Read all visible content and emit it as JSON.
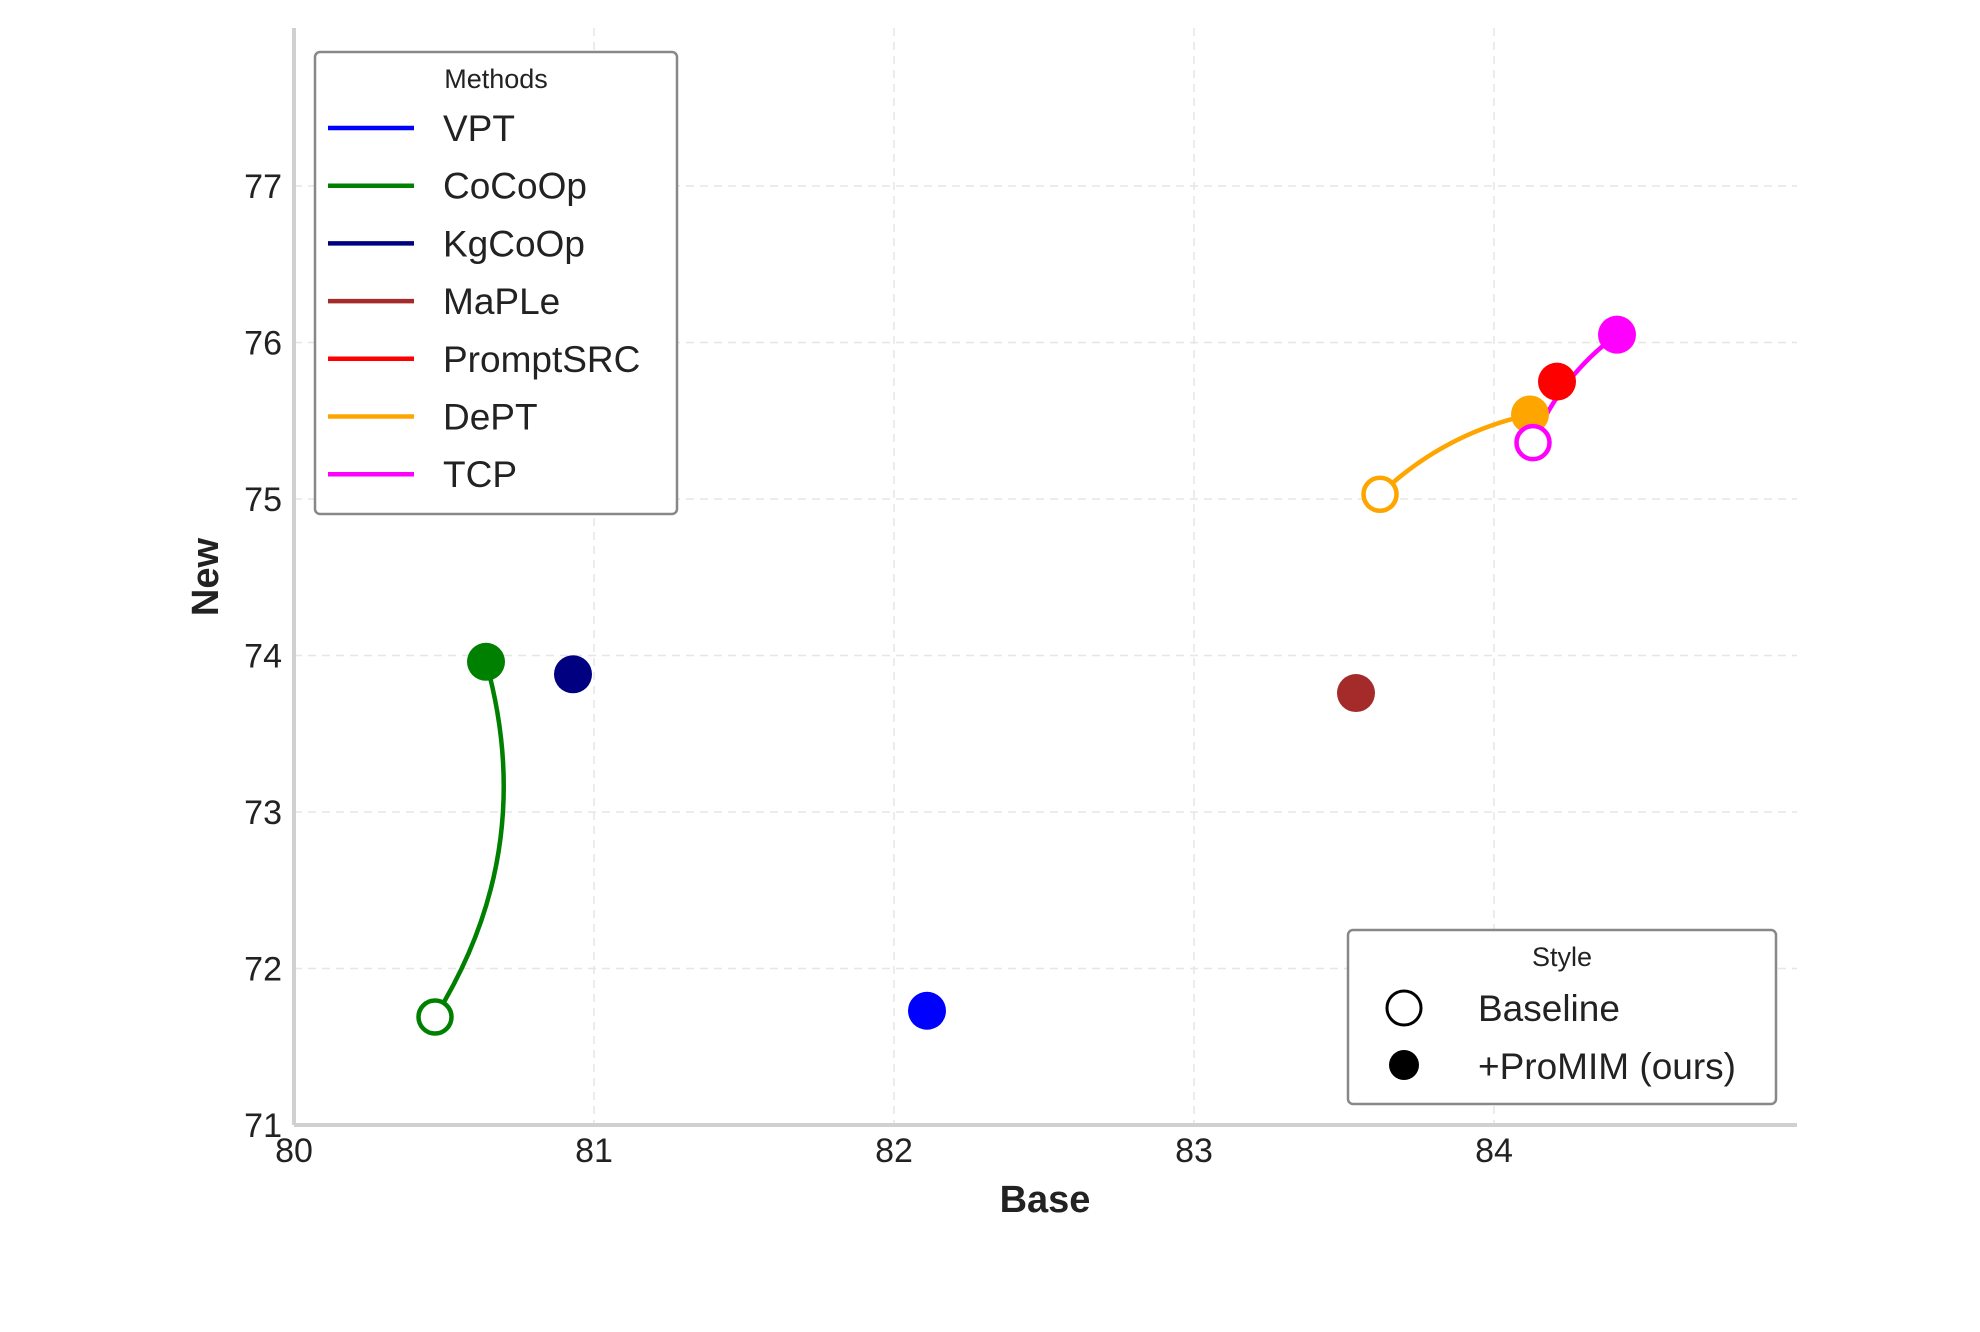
{
  "chart_data": {
    "type": "scatter",
    "title": "",
    "xlabel": "Base",
    "ylabel": "New",
    "xlim": [
      80,
      85
    ],
    "ylim": [
      71,
      78
    ],
    "xticks": [
      80,
      81,
      82,
      83,
      84
    ],
    "yticks": [
      71,
      72,
      73,
      74,
      75,
      76,
      77
    ],
    "grid": true,
    "series": [
      {
        "name": "VPT",
        "color": "#0000ff",
        "promim": {
          "x": 82.11,
          "y": 71.73
        }
      },
      {
        "name": "CoCoOp",
        "color": "#008000",
        "baseline": {
          "x": 80.47,
          "y": 71.69
        },
        "promim": {
          "x": 80.64,
          "y": 73.96
        }
      },
      {
        "name": "KgCoOp",
        "color": "#000080",
        "promim": {
          "x": 80.93,
          "y": 73.88
        }
      },
      {
        "name": "MaPLe",
        "color": "#a52a2a",
        "promim": {
          "x": 83.54,
          "y": 73.76
        }
      },
      {
        "name": "PromptSRC",
        "color": "#ff0000",
        "promim": {
          "x": 84.21,
          "y": 75.75
        }
      },
      {
        "name": "DePT",
        "color": "#ffa500",
        "baseline": {
          "x": 83.62,
          "y": 75.03
        },
        "promim": {
          "x": 84.12,
          "y": 75.54
        }
      },
      {
        "name": "TCP",
        "color": "#ff00ff",
        "baseline": {
          "x": 84.13,
          "y": 75.36
        },
        "promim": {
          "x": 84.41,
          "y": 76.05
        }
      }
    ],
    "legend_methods": {
      "title": "Methods",
      "placement": "top-left"
    },
    "legend_style": {
      "title": "Style",
      "placement": "bottom-right",
      "entries": [
        "Baseline",
        "+ProMIM (ours)"
      ]
    }
  }
}
